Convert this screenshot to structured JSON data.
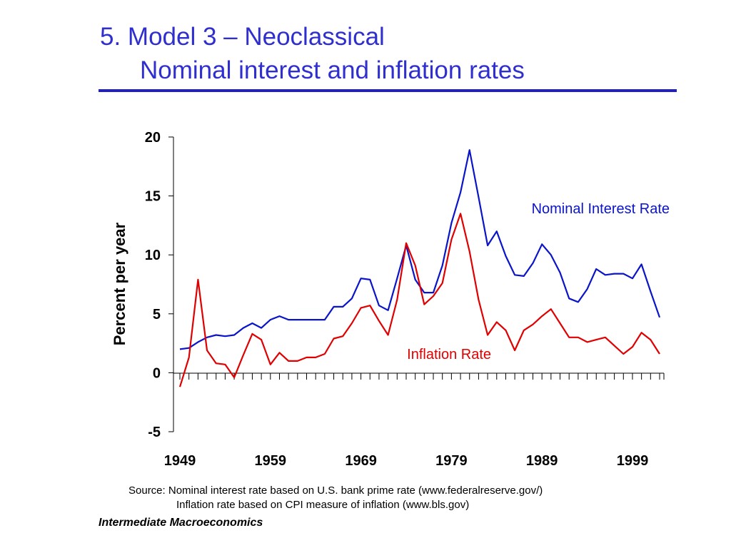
{
  "slide": {
    "title_line1": "5.  Model 3 – Neoclassical",
    "title_line2": "Nominal interest and inflation rates",
    "source_line1": "Source: Nominal interest rate based on U.S. bank prime rate (www.federalreserve.gov/)",
    "source_line2": "Inflation rate based on CPI measure of inflation (www.bls.gov)",
    "footer": "Intermediate Macroeconomics"
  },
  "colors": {
    "title": "#2f2fd0",
    "interest": "#0a14c8",
    "inflation": "#e00000"
  },
  "chart_data": {
    "type": "line",
    "ylabel": "Percent per year",
    "ylim": [
      -5,
      20
    ],
    "yticks": [
      -5,
      0,
      5,
      10,
      15,
      20
    ],
    "xlim": [
      1949,
      2002
    ],
    "xticks": [
      1949,
      1959,
      1969,
      1979,
      1989,
      1999
    ],
    "x": [
      1949,
      1950,
      1951,
      1952,
      1953,
      1954,
      1955,
      1956,
      1957,
      1958,
      1959,
      1960,
      1961,
      1962,
      1963,
      1964,
      1965,
      1966,
      1967,
      1968,
      1969,
      1970,
      1971,
      1972,
      1973,
      1974,
      1975,
      1976,
      1977,
      1978,
      1979,
      1980,
      1981,
      1982,
      1983,
      1984,
      1985,
      1986,
      1987,
      1988,
      1989,
      1990,
      1991,
      1992,
      1993,
      1994,
      1995,
      1996,
      1997,
      1998,
      1999,
      2000,
      2001,
      2002
    ],
    "series": [
      {
        "name": "Nominal Interest Rate",
        "color": "#0a14c8",
        "values": [
          2.0,
          2.1,
          2.6,
          3.0,
          3.2,
          3.1,
          3.2,
          3.8,
          4.2,
          3.8,
          4.5,
          4.8,
          4.5,
          4.5,
          4.5,
          4.5,
          4.5,
          5.6,
          5.6,
          6.3,
          8.0,
          7.9,
          5.7,
          5.3,
          8.0,
          10.8,
          7.9,
          6.8,
          6.8,
          9.1,
          12.7,
          15.3,
          18.9,
          14.9,
          10.8,
          12.0,
          9.9,
          8.3,
          8.2,
          9.3,
          10.9,
          10.0,
          8.5,
          6.3,
          6.0,
          7.1,
          8.8,
          8.3,
          8.4,
          8.4,
          8.0,
          9.2,
          6.9,
          4.7
        ]
      },
      {
        "name": "Inflation Rate",
        "color": "#e00000",
        "values": [
          -1.2,
          1.3,
          7.9,
          1.9,
          0.8,
          0.7,
          -0.4,
          1.5,
          3.3,
          2.8,
          0.7,
          1.7,
          1.0,
          1.0,
          1.3,
          1.3,
          1.6,
          2.9,
          3.1,
          4.2,
          5.5,
          5.7,
          4.4,
          3.2,
          6.2,
          11.0,
          9.1,
          5.8,
          6.5,
          7.6,
          11.3,
          13.5,
          10.3,
          6.2,
          3.2,
          4.3,
          3.6,
          1.9,
          3.6,
          4.1,
          4.8,
          5.4,
          4.2,
          3.0,
          3.0,
          2.6,
          2.8,
          3.0,
          2.3,
          1.6,
          2.2,
          3.4,
          2.8,
          1.6
        ]
      }
    ],
    "annotations": [
      {
        "text": "Nominal Interest Rate",
        "series": 0
      },
      {
        "text": "Inflation Rate",
        "series": 1
      }
    ]
  }
}
